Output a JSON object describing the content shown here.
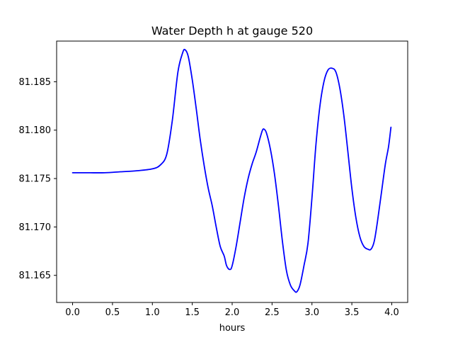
{
  "chart_data": {
    "type": "line",
    "title": "Water Depth h at gauge 520",
    "xlabel": "hours",
    "ylabel": "",
    "xlim": [
      -0.2,
      4.2
    ],
    "ylim": [
      81.1622,
      81.1892
    ],
    "xticks": [
      0.0,
      0.5,
      1.0,
      1.5,
      2.0,
      2.5,
      3.0,
      3.5,
      4.0
    ],
    "xtick_labels": [
      "0.0",
      "0.5",
      "1.0",
      "1.5",
      "2.0",
      "2.5",
      "3.0",
      "3.5",
      "4.0"
    ],
    "yticks": [
      81.165,
      81.17,
      81.175,
      81.18,
      81.185
    ],
    "ytick_labels": [
      "81.165",
      "81.170",
      "81.175",
      "81.180",
      "81.185"
    ],
    "grid": false,
    "series": [
      {
        "color": "#0000ff",
        "points": [
          [
            0.0,
            81.1756
          ],
          [
            0.2,
            81.1756
          ],
          [
            0.4,
            81.1756
          ],
          [
            0.6,
            81.1757
          ],
          [
            0.8,
            81.1758
          ],
          [
            1.0,
            81.176
          ],
          [
            1.1,
            81.1764
          ],
          [
            1.18,
            81.1775
          ],
          [
            1.25,
            81.181
          ],
          [
            1.32,
            81.186
          ],
          [
            1.38,
            81.188
          ],
          [
            1.41,
            81.1883
          ],
          [
            1.45,
            81.1876
          ],
          [
            1.5,
            81.1852
          ],
          [
            1.55,
            81.1822
          ],
          [
            1.6,
            81.179
          ],
          [
            1.65,
            81.1763
          ],
          [
            1.7,
            81.174
          ],
          [
            1.75,
            81.1722
          ],
          [
            1.8,
            81.17
          ],
          [
            1.85,
            81.168
          ],
          [
            1.9,
            81.167
          ],
          [
            1.93,
            81.166
          ],
          [
            1.97,
            81.1656
          ],
          [
            2.0,
            81.166
          ],
          [
            2.05,
            81.168
          ],
          [
            2.1,
            81.1705
          ],
          [
            2.15,
            81.173
          ],
          [
            2.2,
            81.175
          ],
          [
            2.25,
            81.1765
          ],
          [
            2.3,
            81.1777
          ],
          [
            2.35,
            81.1792
          ],
          [
            2.38,
            81.18
          ],
          [
            2.4,
            81.1801
          ],
          [
            2.43,
            81.1797
          ],
          [
            2.48,
            81.178
          ],
          [
            2.53,
            81.1755
          ],
          [
            2.58,
            81.1722
          ],
          [
            2.63,
            81.1685
          ],
          [
            2.68,
            81.1655
          ],
          [
            2.73,
            81.164
          ],
          [
            2.78,
            81.1634
          ],
          [
            2.81,
            81.1633
          ],
          [
            2.85,
            81.164
          ],
          [
            2.9,
            81.166
          ],
          [
            2.95,
            81.1683
          ],
          [
            3.0,
            81.173
          ],
          [
            3.05,
            81.1785
          ],
          [
            3.1,
            81.1825
          ],
          [
            3.15,
            81.185
          ],
          [
            3.2,
            81.1862
          ],
          [
            3.25,
            81.1864
          ],
          [
            3.3,
            81.186
          ],
          [
            3.35,
            81.1843
          ],
          [
            3.4,
            81.1815
          ],
          [
            3.45,
            81.1778
          ],
          [
            3.5,
            81.174
          ],
          [
            3.55,
            81.171
          ],
          [
            3.6,
            81.169
          ],
          [
            3.65,
            81.168
          ],
          [
            3.7,
            81.1677
          ],
          [
            3.74,
            81.1677
          ],
          [
            3.78,
            81.1685
          ],
          [
            3.82,
            81.1705
          ],
          [
            3.87,
            81.1735
          ],
          [
            3.92,
            81.1765
          ],
          [
            3.96,
            81.1783
          ],
          [
            3.99,
            81.1803
          ]
        ]
      }
    ]
  }
}
